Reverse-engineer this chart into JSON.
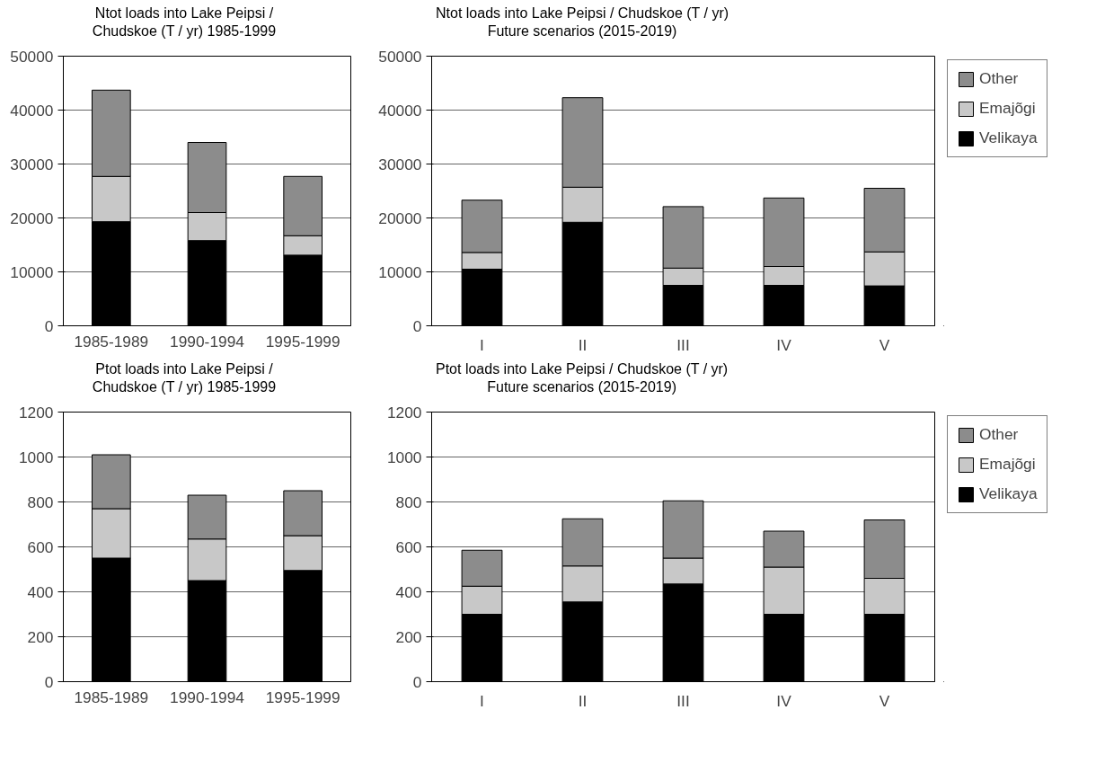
{
  "chart_data": [
    {
      "type": "bar",
      "title": "Ntot loads into Lake Peipsi / Chudskoe (T / yr) 1985-1999",
      "categories": [
        "1985-1989",
        "1990-1994",
        "1995-1999"
      ],
      "stacked": true,
      "ylim": [
        0,
        50000
      ],
      "yticks": [
        0,
        10000,
        20000,
        30000,
        40000,
        50000
      ],
      "grid": "y",
      "legend": false,
      "series": [
        {
          "color": "#000000",
          "values": [
            19300,
            15800,
            13100
          ]
        },
        {
          "color": "#c8c8c8",
          "values": [
            8400,
            5200,
            3600
          ]
        },
        {
          "color": "#8c8c8c",
          "values": [
            16000,
            13000,
            11000
          ]
        }
      ]
    },
    {
      "type": "bar",
      "title": "Ntot loads into Lake Peipsi / Chudskoe (T / yr)",
      "subtitle": "Future scenarios (2015-2019)",
      "categories": [
        "I",
        "II",
        "III",
        "IV",
        "V"
      ],
      "stacked": true,
      "ylim": [
        0,
        50000
      ],
      "yticks": [
        0,
        10000,
        20000,
        30000,
        40000,
        50000
      ],
      "grid": "y",
      "legend": "right",
      "series": [
        {
          "name": "Velikaya",
          "color": "#000000",
          "values": [
            10500,
            19200,
            7500,
            7500,
            7400
          ]
        },
        {
          "name": "Emajõgi",
          "color": "#c8c8c8",
          "values": [
            3100,
            6500,
            3200,
            3500,
            6300
          ]
        },
        {
          "name": "Other",
          "color": "#8c8c8c",
          "values": [
            9700,
            16600,
            11400,
            12700,
            11800
          ]
        }
      ]
    },
    {
      "type": "bar",
      "title": "Ptot loads into Lake Peipsi / Chudskoe (T / yr) 1985-1999",
      "categories": [
        "1985-1989",
        "1990-1994",
        "1995-1999"
      ],
      "stacked": true,
      "ylim": [
        0,
        1200
      ],
      "yticks": [
        0,
        200,
        400,
        600,
        800,
        1000,
        1200
      ],
      "grid": "y",
      "legend": false,
      "series": [
        {
          "color": "#000000",
          "values": [
            550,
            450,
            495
          ]
        },
        {
          "color": "#c8c8c8",
          "values": [
            220,
            185,
            155
          ]
        },
        {
          "color": "#8c8c8c",
          "values": [
            240,
            195,
            200
          ]
        }
      ]
    },
    {
      "type": "bar",
      "title": "Ptot loads into Lake Peipsi / Chudskoe (T / yr)",
      "subtitle": "Future scenarios (2015-2019)",
      "categories": [
        "I",
        "II",
        "III",
        "IV",
        "V"
      ],
      "stacked": true,
      "ylim": [
        0,
        1200
      ],
      "yticks": [
        0,
        200,
        400,
        600,
        800,
        1000,
        1200
      ],
      "grid": "y",
      "legend": "right",
      "series": [
        {
          "name": "Velikaya",
          "color": "#000000",
          "values": [
            300,
            355,
            435,
            300,
            300
          ]
        },
        {
          "name": "Emajõgi",
          "color": "#c8c8c8",
          "values": [
            125,
            160,
            115,
            210,
            160
          ]
        },
        {
          "name": "Other",
          "color": "#8c8c8c",
          "values": [
            160,
            210,
            255,
            160,
            260
          ]
        }
      ]
    }
  ]
}
